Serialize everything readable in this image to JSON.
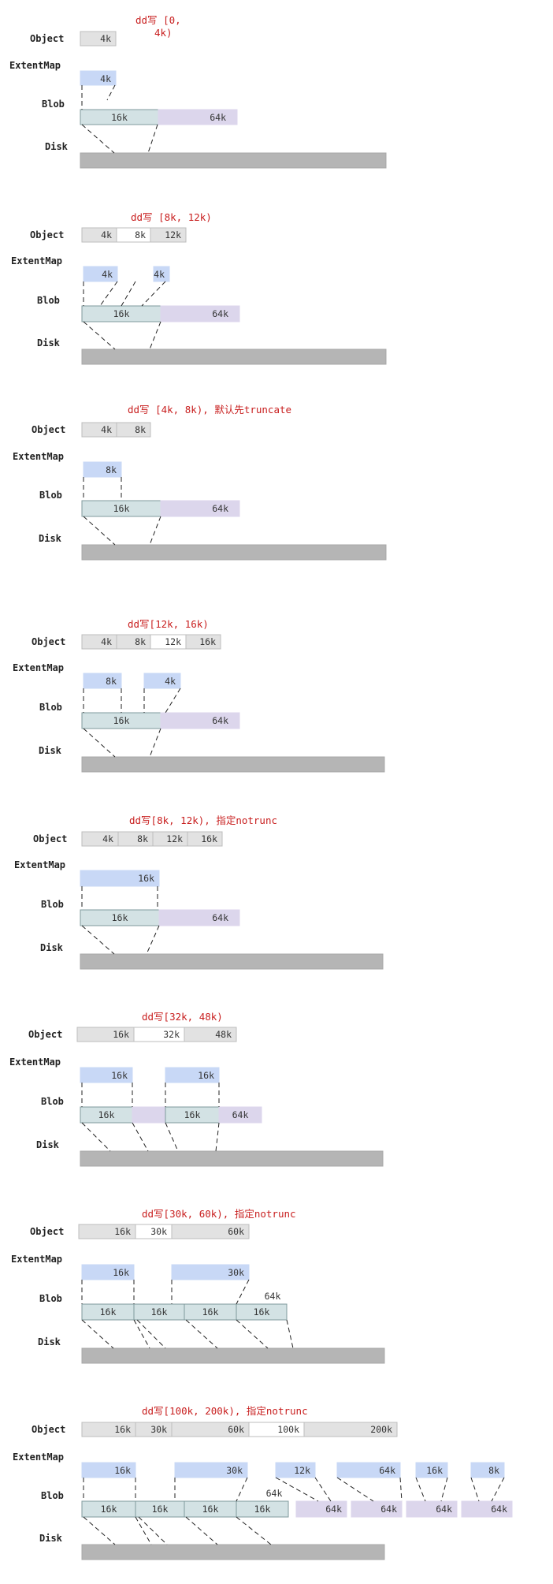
{
  "row_labels": {
    "object": "Object",
    "extent_map": "ExtentMap",
    "blob": "Blob",
    "disk": "Disk"
  },
  "colors": {
    "object": "#e2e2e2",
    "object_written": "#ffffff",
    "extent": "#c8d8f6",
    "blob_main": "#d3e2e4",
    "blob_extra": "#dcd6ec",
    "disk": "#b5b5b5",
    "caption": "#c81e1e"
  },
  "steps": [
    {
      "caption_lines": [
        "dd写 [0,",
        "4k)"
      ],
      "object": [
        {
          "label": "4k",
          "w": false
        }
      ],
      "extents": [
        {
          "label": "4k"
        }
      ],
      "blobs": [
        {
          "label": "16k",
          "t": "main"
        },
        {
          "label": "64k",
          "t": "extra"
        }
      ]
    },
    {
      "caption_lines": [
        "dd写 [8k, 12k)"
      ],
      "object": [
        {
          "label": "4k",
          "w": false
        },
        {
          "label": "8k",
          "w": true
        },
        {
          "label": "12k",
          "w": false
        }
      ],
      "extents": [
        {
          "label": "4k"
        },
        {
          "label": "4k"
        }
      ],
      "blobs": [
        {
          "label": "16k",
          "t": "main"
        },
        {
          "label": "64k",
          "t": "extra"
        }
      ]
    },
    {
      "caption_lines": [
        "dd写 [4k, 8k), 默认先truncate"
      ],
      "object": [
        {
          "label": "4k",
          "w": false
        },
        {
          "label": "8k",
          "w": false
        }
      ],
      "extents": [
        {
          "label": "8k"
        }
      ],
      "blobs": [
        {
          "label": "16k",
          "t": "main"
        },
        {
          "label": "64k",
          "t": "extra"
        }
      ]
    },
    {
      "caption_lines": [
        "dd写[12k, 16k)"
      ],
      "object": [
        {
          "label": "4k",
          "w": false
        },
        {
          "label": "8k",
          "w": false
        },
        {
          "label": "12k",
          "w": true
        },
        {
          "label": "16k",
          "w": false
        }
      ],
      "extents": [
        {
          "label": "8k"
        },
        {
          "label": "4k"
        }
      ],
      "blobs": [
        {
          "label": "16k",
          "t": "main"
        },
        {
          "label": "64k",
          "t": "extra"
        }
      ]
    },
    {
      "caption_lines": [
        "dd写[8k, 12k), 指定notrunc"
      ],
      "object": [
        {
          "label": "4k",
          "w": false
        },
        {
          "label": "8k",
          "w": false
        },
        {
          "label": "12k",
          "w": false
        },
        {
          "label": "16k",
          "w": false
        }
      ],
      "extents": [
        {
          "label": "16k"
        }
      ],
      "blobs": [
        {
          "label": "16k",
          "t": "main"
        },
        {
          "label": "64k",
          "t": "extra"
        }
      ]
    },
    {
      "caption_lines": [
        "dd写[32k, 48k)"
      ],
      "object": [
        {
          "label": "16k",
          "w": false
        },
        {
          "label": "32k",
          "w": true
        },
        {
          "label": "48k",
          "w": false
        }
      ],
      "extents": [
        {
          "label": "16k"
        },
        {
          "label": "16k"
        }
      ],
      "blobs": [
        {
          "label": "16k",
          "t": "main"
        },
        {
          "label": "",
          "t": "extra"
        },
        {
          "label": "16k",
          "t": "main"
        },
        {
          "label": "64k",
          "t": "extra"
        }
      ]
    },
    {
      "caption_lines": [
        "dd写[30k, 60k), 指定notrunc"
      ],
      "object": [
        {
          "label": "16k",
          "w": false
        },
        {
          "label": "30k",
          "w": true
        },
        {
          "label": "60k",
          "w": false
        }
      ],
      "extents": [
        {
          "label": "16k"
        },
        {
          "label": "30k"
        }
      ],
      "blobs": [
        {
          "label": "16k",
          "t": "main"
        },
        {
          "label": "16k",
          "t": "main"
        },
        {
          "label": "16k",
          "t": "main"
        },
        {
          "label": "16k",
          "t": "main"
        }
      ],
      "blob_note": "64k"
    },
    {
      "caption_lines": [
        "dd写[100k, 200k), 指定notrunc"
      ],
      "object": [
        {
          "label": "16k",
          "w": false
        },
        {
          "label": "30k",
          "w": false
        },
        {
          "label": "60k",
          "w": false
        },
        {
          "label": "100k",
          "w": true
        },
        {
          "label": "200k",
          "w": false
        }
      ],
      "extents": [
        {
          "label": "16k"
        },
        {
          "label": "30k"
        },
        {
          "label": "12k"
        },
        {
          "label": "64k"
        },
        {
          "label": "16k"
        },
        {
          "label": "8k"
        }
      ],
      "blobs": [
        {
          "label": "16k",
          "t": "main"
        },
        {
          "label": "16k",
          "t": "main"
        },
        {
          "label": "16k",
          "t": "main"
        },
        {
          "label": "16k",
          "t": "main"
        },
        {
          "label": "64k",
          "t": "extra"
        },
        {
          "label": "64k",
          "t": "extra"
        },
        {
          "label": "64k",
          "t": "extra"
        },
        {
          "label": "64k",
          "t": "extra"
        }
      ],
      "blob_note": "64k"
    }
  ]
}
